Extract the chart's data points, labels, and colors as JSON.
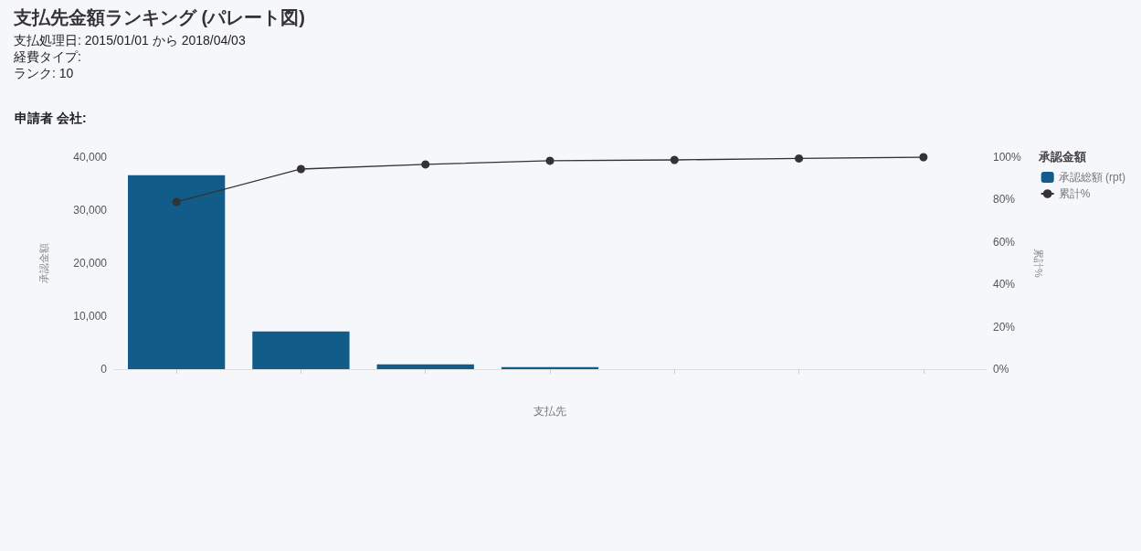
{
  "chart_data": {
    "type": "bar",
    "title": "支払先金額ランキング (パレート図)",
    "subtitle": "支払処理日: 2015/01/01 から 2018/04/03\n経費タイプ:\nランク: 10",
    "annotations": [
      "申請者 会社:"
    ],
    "categories": [
      null,
      null,
      null,
      null,
      null,
      null,
      null
    ],
    "xlabel": "支払先",
    "ylabel": "承認金額",
    "y2label": "累計%",
    "legend_title": "承認金額",
    "legend": "top right",
    "series": [
      {
        "name": "承認総額 (rpt)",
        "color": "#115c89",
        "values": [
          36600,
          7100,
          900,
          400,
          0,
          0,
          0
        ]
      },
      {
        "name": "累計%",
        "type": "line",
        "axis": "y2",
        "color": "#333333",
        "marker": "circle",
        "values": [
          78.9,
          94.4,
          96.6,
          98.3,
          98.7,
          99.4,
          100
        ]
      }
    ],
    "ylim": [
      0,
      40000
    ],
    "yticks": [
      0,
      {
        "value": 10000,
        "label": "10,000"
      },
      {
        "value": 20000,
        "label": "20,000"
      },
      {
        "value": 30000,
        "label": "30,000"
      },
      {
        "value": 40000,
        "label": "40,000"
      }
    ],
    "y2lim": [
      0,
      100
    ],
    "y2ticks": [
      {
        "value": 0,
        "label": "0%"
      },
      {
        "value": 20,
        "label": "20%"
      },
      {
        "value": 40,
        "label": "40%"
      },
      {
        "value": 60,
        "label": "60%"
      },
      {
        "value": 80,
        "label": "80%"
      },
      {
        "value": 100,
        "label": "100%"
      }
    ],
    "grid": false
  }
}
